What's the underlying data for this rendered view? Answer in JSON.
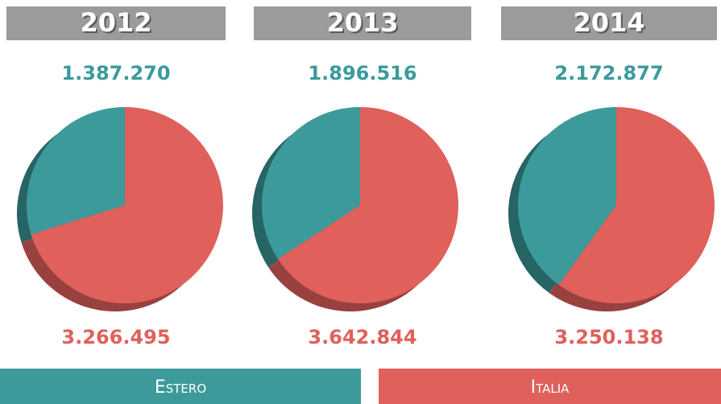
{
  "chart_data": [
    {
      "type": "pie",
      "title": "2012",
      "values": [
        1387270,
        3266495
      ],
      "value_labels": [
        "1.387.270",
        "3.266.495"
      ]
    },
    {
      "type": "pie",
      "title": "2013",
      "values": [
        1896516,
        3642844
      ],
      "value_labels": [
        "1.896.516",
        "3.642.844"
      ]
    },
    {
      "type": "pie",
      "title": "2014",
      "values": [
        2172877,
        3250138
      ],
      "value_labels": [
        "2.172.877",
        "3.250.138"
      ]
    }
  ],
  "legend": [
    {
      "name": "Estero",
      "color": "#3c9a9b"
    },
    {
      "name": "Italia",
      "color": "#e0605c"
    }
  ]
}
